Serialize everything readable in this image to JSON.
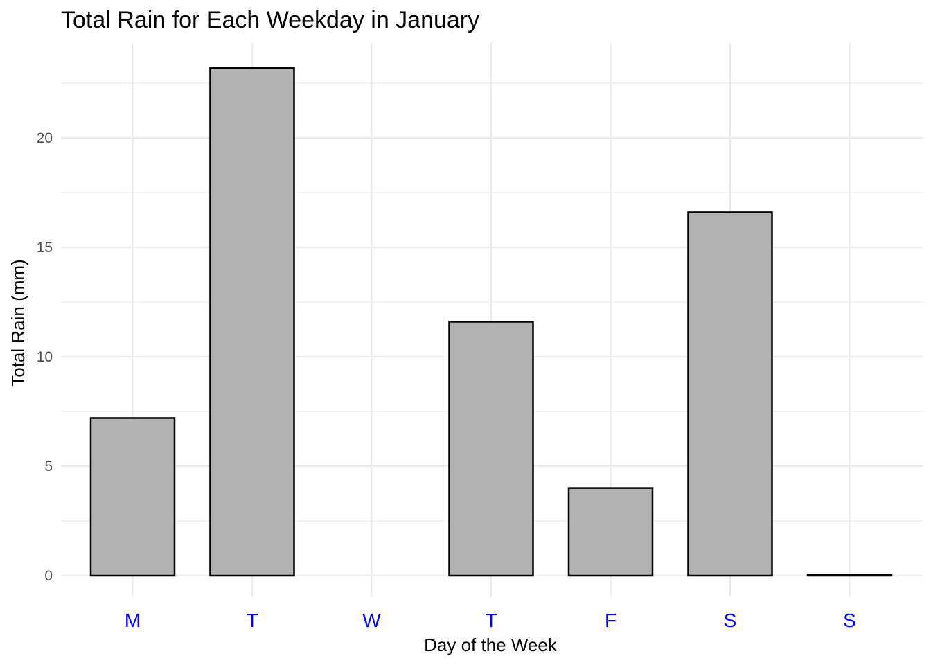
{
  "chart_data": {
    "type": "bar",
    "title": "Total Rain for Each Weekday in January",
    "xlabel": "Day of the Week",
    "ylabel": "Total Rain (mm)",
    "categories": [
      "M",
      "T",
      "W",
      "T",
      "F",
      "S",
      "S"
    ],
    "values": [
      7.2,
      23.2,
      0.0,
      11.6,
      4.0,
      16.6,
      0.05
    ],
    "ylim": [
      0,
      24
    ],
    "yticks": [
      0,
      5,
      10,
      15,
      20
    ],
    "ytick_labels": [
      "0",
      "5",
      "10",
      "15",
      "20"
    ],
    "grid": true,
    "legend": "none",
    "colors": {
      "bar_fill": "#b2b2b2",
      "bar_outline": "#000000",
      "x_tick_labels": "#0000ff",
      "gridline": "#ebebeb"
    }
  }
}
